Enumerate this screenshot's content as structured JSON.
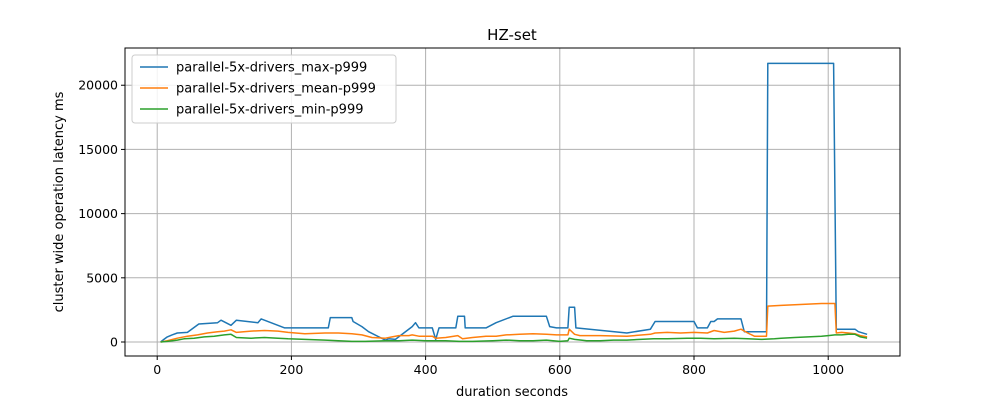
{
  "chart_data": {
    "type": "line",
    "title": "HZ-set",
    "xlabel": "duration seconds",
    "ylabel": "cluster wide operation latency ms",
    "xlim": [
      -48,
      1107
    ],
    "ylim": [
      -1090,
      22900
    ],
    "xticks": [
      0,
      200,
      400,
      600,
      800,
      1000
    ],
    "yticks": [
      0,
      5000,
      10000,
      15000,
      20000
    ],
    "xtick_labels": [
      "0",
      "200",
      "400",
      "600",
      "800",
      "1000"
    ],
    "ytick_labels": [
      "0",
      "5000",
      "10000",
      "15000",
      "20000"
    ],
    "grid": true,
    "legend_position": "top-left",
    "series": [
      {
        "name": "parallel-5x-drivers_max-p999",
        "color": "#1f77b4",
        "points": [
          [
            5,
            0
          ],
          [
            10,
            200
          ],
          [
            15,
            400
          ],
          [
            22,
            550
          ],
          [
            30,
            700
          ],
          [
            45,
            750
          ],
          [
            62,
            1400
          ],
          [
            90,
            1500
          ],
          [
            95,
            1700
          ],
          [
            110,
            1300
          ],
          [
            118,
            1700
          ],
          [
            150,
            1500
          ],
          [
            155,
            1800
          ],
          [
            190,
            1100
          ],
          [
            255,
            1100
          ],
          [
            258,
            1900
          ],
          [
            290,
            1900
          ],
          [
            292,
            1600
          ],
          [
            305,
            1200
          ],
          [
            315,
            800
          ],
          [
            340,
            150
          ],
          [
            345,
            250
          ],
          [
            355,
            200
          ],
          [
            380,
            1200
          ],
          [
            385,
            1500
          ],
          [
            390,
            1100
          ],
          [
            410,
            1100
          ],
          [
            415,
            200
          ],
          [
            420,
            1100
          ],
          [
            445,
            1100
          ],
          [
            448,
            2000
          ],
          [
            458,
            2000
          ],
          [
            459,
            1100
          ],
          [
            490,
            1100
          ],
          [
            505,
            1500
          ],
          [
            530,
            2000
          ],
          [
            580,
            2000
          ],
          [
            585,
            1200
          ],
          [
            595,
            1100
          ],
          [
            612,
            1100
          ],
          [
            614,
            2700
          ],
          [
            622,
            2700
          ],
          [
            624,
            1100
          ],
          [
            700,
            700
          ],
          [
            735,
            1000
          ],
          [
            742,
            1600
          ],
          [
            800,
            1600
          ],
          [
            805,
            1100
          ],
          [
            820,
            1100
          ],
          [
            825,
            1600
          ],
          [
            830,
            1600
          ],
          [
            835,
            1800
          ],
          [
            870,
            1800
          ],
          [
            875,
            800
          ],
          [
            908,
            800
          ],
          [
            910,
            21700
          ],
          [
            1008,
            21700
          ],
          [
            1012,
            1000
          ],
          [
            1040,
            1000
          ],
          [
            1045,
            800
          ],
          [
            1058,
            600
          ]
        ]
      },
      {
        "name": "parallel-5x-drivers_mean-p999",
        "color": "#ff7f0e",
        "points": [
          [
            5,
            0
          ],
          [
            15,
            100
          ],
          [
            30,
            300
          ],
          [
            45,
            450
          ],
          [
            60,
            550
          ],
          [
            75,
            700
          ],
          [
            90,
            800
          ],
          [
            100,
            850
          ],
          [
            110,
            950
          ],
          [
            118,
            750
          ],
          [
            140,
            850
          ],
          [
            160,
            900
          ],
          [
            180,
            850
          ],
          [
            195,
            750
          ],
          [
            220,
            650
          ],
          [
            250,
            700
          ],
          [
            270,
            700
          ],
          [
            290,
            650
          ],
          [
            305,
            550
          ],
          [
            320,
            350
          ],
          [
            340,
            300
          ],
          [
            350,
            400
          ],
          [
            360,
            500
          ],
          [
            375,
            500
          ],
          [
            380,
            550
          ],
          [
            390,
            450
          ],
          [
            410,
            450
          ],
          [
            415,
            300
          ],
          [
            430,
            350
          ],
          [
            448,
            500
          ],
          [
            455,
            250
          ],
          [
            470,
            350
          ],
          [
            490,
            450
          ],
          [
            505,
            450
          ],
          [
            520,
            550
          ],
          [
            540,
            600
          ],
          [
            560,
            650
          ],
          [
            580,
            600
          ],
          [
            595,
            550
          ],
          [
            612,
            550
          ],
          [
            614,
            1000
          ],
          [
            622,
            600
          ],
          [
            630,
            500
          ],
          [
            660,
            500
          ],
          [
            700,
            450
          ],
          [
            735,
            600
          ],
          [
            742,
            700
          ],
          [
            760,
            750
          ],
          [
            780,
            700
          ],
          [
            800,
            750
          ],
          [
            820,
            700
          ],
          [
            830,
            900
          ],
          [
            845,
            750
          ],
          [
            860,
            850
          ],
          [
            870,
            1000
          ],
          [
            880,
            700
          ],
          [
            890,
            450
          ],
          [
            908,
            450
          ],
          [
            910,
            2800
          ],
          [
            930,
            2850
          ],
          [
            950,
            2900
          ],
          [
            970,
            2950
          ],
          [
            990,
            3000
          ],
          [
            1010,
            3000
          ],
          [
            1012,
            700
          ],
          [
            1020,
            750
          ],
          [
            1030,
            700
          ],
          [
            1040,
            650
          ],
          [
            1048,
            500
          ],
          [
            1058,
            400
          ]
        ]
      },
      {
        "name": "parallel-5x-drivers_min-p999",
        "color": "#2ca02c",
        "points": [
          [
            5,
            0
          ],
          [
            15,
            50
          ],
          [
            30,
            150
          ],
          [
            40,
            250
          ],
          [
            55,
            300
          ],
          [
            70,
            400
          ],
          [
            85,
            450
          ],
          [
            100,
            550
          ],
          [
            110,
            600
          ],
          [
            118,
            350
          ],
          [
            140,
            300
          ],
          [
            160,
            350
          ],
          [
            180,
            300
          ],
          [
            195,
            250
          ],
          [
            220,
            200
          ],
          [
            250,
            150
          ],
          [
            270,
            100
          ],
          [
            290,
            50
          ],
          [
            310,
            50
          ],
          [
            340,
            100
          ],
          [
            360,
            100
          ],
          [
            380,
            150
          ],
          [
            400,
            100
          ],
          [
            430,
            100
          ],
          [
            450,
            50
          ],
          [
            470,
            50
          ],
          [
            500,
            100
          ],
          [
            520,
            150
          ],
          [
            540,
            100
          ],
          [
            560,
            100
          ],
          [
            580,
            150
          ],
          [
            600,
            50
          ],
          [
            612,
            100
          ],
          [
            614,
            300
          ],
          [
            622,
            200
          ],
          [
            640,
            100
          ],
          [
            660,
            100
          ],
          [
            680,
            150
          ],
          [
            700,
            150
          ],
          [
            720,
            200
          ],
          [
            740,
            250
          ],
          [
            760,
            250
          ],
          [
            790,
            300
          ],
          [
            810,
            300
          ],
          [
            830,
            250
          ],
          [
            860,
            300
          ],
          [
            880,
            250
          ],
          [
            900,
            200
          ],
          [
            920,
            250
          ],
          [
            930,
            300
          ],
          [
            950,
            350
          ],
          [
            970,
            400
          ],
          [
            990,
            450
          ],
          [
            1000,
            500
          ],
          [
            1010,
            550
          ],
          [
            1020,
            550
          ],
          [
            1030,
            600
          ],
          [
            1040,
            600
          ],
          [
            1048,
            400
          ],
          [
            1058,
            300
          ]
        ]
      }
    ]
  }
}
